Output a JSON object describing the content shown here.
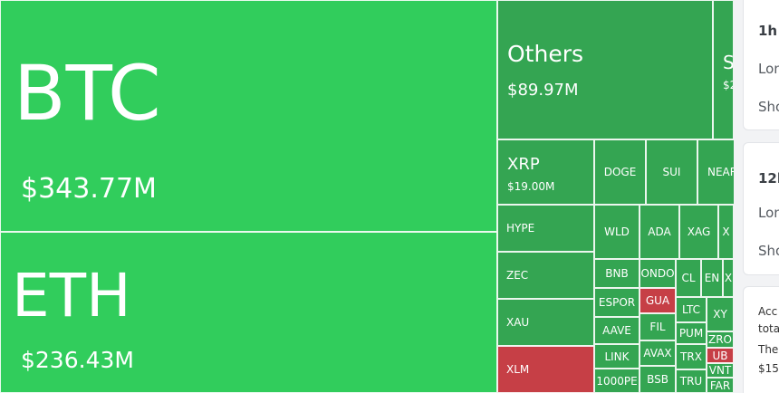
{
  "colors": {
    "green_main": "#31cd5c",
    "green_dark": "#34a552",
    "green_mid": "#2f9a4c",
    "red": "#c63f46"
  },
  "treemap": {
    "btc": {
      "symbol": "BTC",
      "value": "$343.77M"
    },
    "eth": {
      "symbol": "ETH",
      "value": "$236.43M"
    },
    "others": {
      "symbol": "Others",
      "value": "$89.97M"
    },
    "partial_top": {
      "symbol": "S",
      "value": "$2"
    },
    "xrp": {
      "symbol": "XRP",
      "value": "$19.00M"
    },
    "doge": "DOGE",
    "sui": "SUI",
    "near": "NEAR",
    "hype": "HYPE",
    "zec": "ZEC",
    "xau": "XAU",
    "xlm": "XLM",
    "wld": "WLD",
    "ada": "ADA",
    "xag": "XAG",
    "x1": "X",
    "bnb": "BNB",
    "ondo": "ONDO",
    "cl": "CL",
    "en": "EN",
    "x2": "X",
    "espor": "ESPOR",
    "gua": "GUA",
    "aave": "AAVE",
    "fil": "FIL",
    "ltc": "LTC",
    "xy": "XY",
    "pum": "PUM",
    "zro": "ZRO",
    "link": "LINK",
    "avax": "AVAX",
    "trx": "TRX",
    "ub": "UB",
    "vnt": "VNT",
    "k1000pe": "1000PE",
    "bsb": "BSB",
    "tru": "TRU",
    "far": "FAR"
  },
  "side": {
    "card1": {
      "title": "1h",
      "row1": "Lon",
      "row2": "Sho"
    },
    "card2": {
      "title": "12h",
      "row1": "Lon",
      "row2": "Sho"
    },
    "card3": {
      "lines": [
        "Acc",
        "tota",
        "The",
        "$15"
      ]
    }
  }
}
